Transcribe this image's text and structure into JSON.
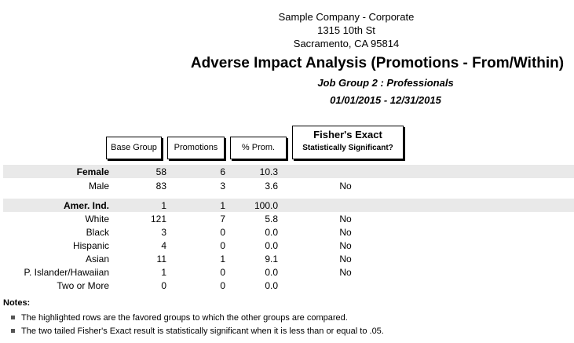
{
  "header": {
    "company": "Sample Company - Corporate",
    "street": "1315 10th St",
    "city": "Sacramento, CA 95814",
    "title": "Adverse Impact Analysis (Promotions - From/Within)",
    "job_group": "Job Group 2 : Professionals",
    "date_range": "01/01/2015 - 12/31/2015"
  },
  "columns": {
    "base_group": "Base Group",
    "promotions": "Promotions",
    "pct_prom": "% Prom.",
    "fishers_title": "Fisher's Exact",
    "fishers_sub": "Statistically Significant?"
  },
  "rows": [
    {
      "label": "Female",
      "base": "58",
      "prom": "6",
      "pct": "10.3",
      "fisher": "",
      "highlight": true
    },
    {
      "label": "Male",
      "base": "83",
      "prom": "3",
      "pct": "3.6",
      "fisher": "No",
      "highlight": false
    },
    {
      "label": "Amer. Ind.",
      "base": "1",
      "prom": "1",
      "pct": "100.0",
      "fisher": "",
      "highlight": true
    },
    {
      "label": "White",
      "base": "121",
      "prom": "7",
      "pct": "5.8",
      "fisher": "No",
      "highlight": false
    },
    {
      "label": "Black",
      "base": "3",
      "prom": "0",
      "pct": "0.0",
      "fisher": "No",
      "highlight": false
    },
    {
      "label": "Hispanic",
      "base": "4",
      "prom": "0",
      "pct": "0.0",
      "fisher": "No",
      "highlight": false
    },
    {
      "label": "Asian",
      "base": "11",
      "prom": "1",
      "pct": "9.1",
      "fisher": "No",
      "highlight": false
    },
    {
      "label": "P. Islander/Hawaiian",
      "base": "1",
      "prom": "0",
      "pct": "0.0",
      "fisher": "No",
      "highlight": false
    },
    {
      "label": "Two or More",
      "base": "0",
      "prom": "0",
      "pct": "0.0",
      "fisher": "",
      "highlight": false
    }
  ],
  "notes": {
    "title": "Notes:",
    "items": [
      "The highlighted rows are the favored groups to which the other groups are compared.",
      "The two tailed Fisher's Exact result is statistically significant when it is less than or equal to .05."
    ]
  }
}
